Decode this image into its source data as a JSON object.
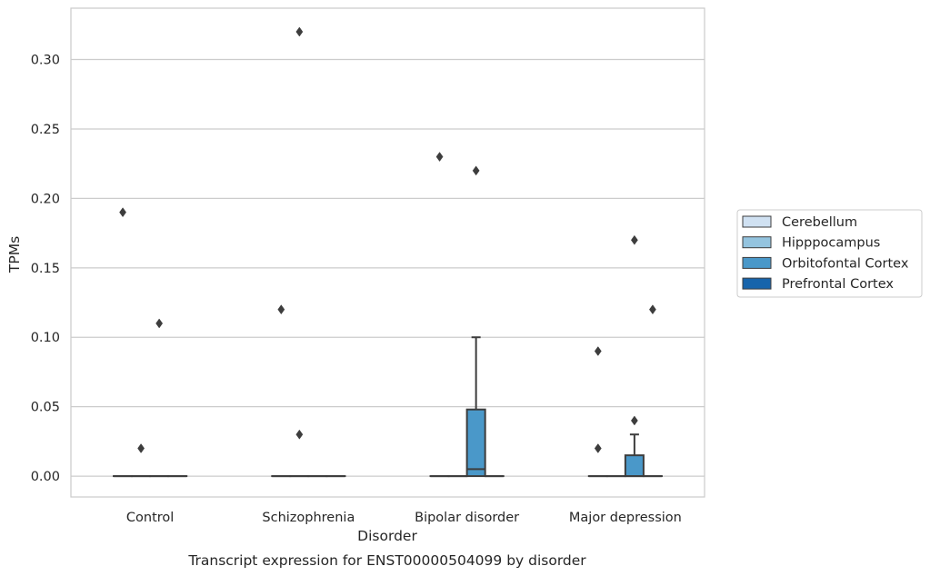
{
  "caption": "Transcript expression for ENST00000504099 by disorder",
  "chart_data": {
    "type": "box",
    "xlabel": "Disorder",
    "ylabel": "TPMs",
    "ylim": [
      -0.015,
      0.337
    ],
    "yticks": [
      "0.00",
      "0.05",
      "0.10",
      "0.15",
      "0.20",
      "0.25",
      "0.30"
    ],
    "grid": "horizontal",
    "legend_position": "right",
    "categories": [
      "Control",
      "Schizophrenia",
      "Bipolar disorder",
      "Major depression"
    ],
    "series": [
      {
        "name": "Cerebellum",
        "color": "#d0e1f2"
      },
      {
        "name": "Hipppocampus",
        "color": "#94c4df"
      },
      {
        "name": "Orbitofontal Cortex",
        "color": "#4a98c9"
      },
      {
        "name": "Prefrontal Cortex",
        "color": "#1764ab"
      }
    ],
    "boxes": [
      {
        "category": 0,
        "series": 0,
        "q1": 0,
        "median": 0,
        "q3": 0,
        "whisker_low": 0,
        "whisker_high": 0,
        "outliers": [
          0.19
        ]
      },
      {
        "category": 0,
        "series": 1,
        "q1": 0,
        "median": 0,
        "q3": 0,
        "whisker_low": 0,
        "whisker_high": 0,
        "outliers": [
          0.02
        ]
      },
      {
        "category": 0,
        "series": 2,
        "q1": 0,
        "median": 0,
        "q3": 0,
        "whisker_low": 0,
        "whisker_high": 0,
        "outliers": [
          0.11
        ]
      },
      {
        "category": 0,
        "series": 3,
        "q1": 0,
        "median": 0,
        "q3": 0,
        "whisker_low": 0,
        "whisker_high": 0,
        "outliers": []
      },
      {
        "category": 1,
        "series": 0,
        "q1": 0,
        "median": 0,
        "q3": 0,
        "whisker_low": 0,
        "whisker_high": 0,
        "outliers": [
          0.12
        ]
      },
      {
        "category": 1,
        "series": 1,
        "q1": 0,
        "median": 0,
        "q3": 0,
        "whisker_low": 0,
        "whisker_high": 0,
        "outliers": [
          0.32,
          0.03
        ]
      },
      {
        "category": 1,
        "series": 2,
        "q1": 0,
        "median": 0,
        "q3": 0,
        "whisker_low": 0,
        "whisker_high": 0,
        "outliers": []
      },
      {
        "category": 1,
        "series": 3,
        "q1": 0,
        "median": 0,
        "q3": 0,
        "whisker_low": 0,
        "whisker_high": 0,
        "outliers": []
      },
      {
        "category": 2,
        "series": 0,
        "q1": 0,
        "median": 0,
        "q3": 0,
        "whisker_low": 0,
        "whisker_high": 0,
        "outliers": [
          0.23
        ]
      },
      {
        "category": 2,
        "series": 1,
        "q1": 0,
        "median": 0,
        "q3": 0,
        "whisker_low": 0,
        "whisker_high": 0,
        "outliers": []
      },
      {
        "category": 2,
        "series": 2,
        "q1": 0,
        "median": 0.005,
        "q3": 0.048,
        "whisker_low": 0,
        "whisker_high": 0.1,
        "outliers": [
          0.22
        ]
      },
      {
        "category": 2,
        "series": 3,
        "q1": 0,
        "median": 0,
        "q3": 0,
        "whisker_low": 0,
        "whisker_high": 0,
        "outliers": []
      },
      {
        "category": 3,
        "series": 0,
        "q1": 0,
        "median": 0,
        "q3": 0,
        "whisker_low": 0,
        "whisker_high": 0,
        "outliers": [
          0.02,
          0.09
        ]
      },
      {
        "category": 3,
        "series": 1,
        "q1": 0,
        "median": 0,
        "q3": 0,
        "whisker_low": 0,
        "whisker_high": 0,
        "outliers": []
      },
      {
        "category": 3,
        "series": 2,
        "q1": 0,
        "median": 0,
        "q3": 0.015,
        "whisker_low": 0,
        "whisker_high": 0.03,
        "outliers": [
          0.04,
          0.17
        ]
      },
      {
        "category": 3,
        "series": 3,
        "q1": 0,
        "median": 0,
        "q3": 0,
        "whisker_low": 0,
        "whisker_high": 0,
        "outliers": [
          0.12
        ]
      }
    ]
  }
}
